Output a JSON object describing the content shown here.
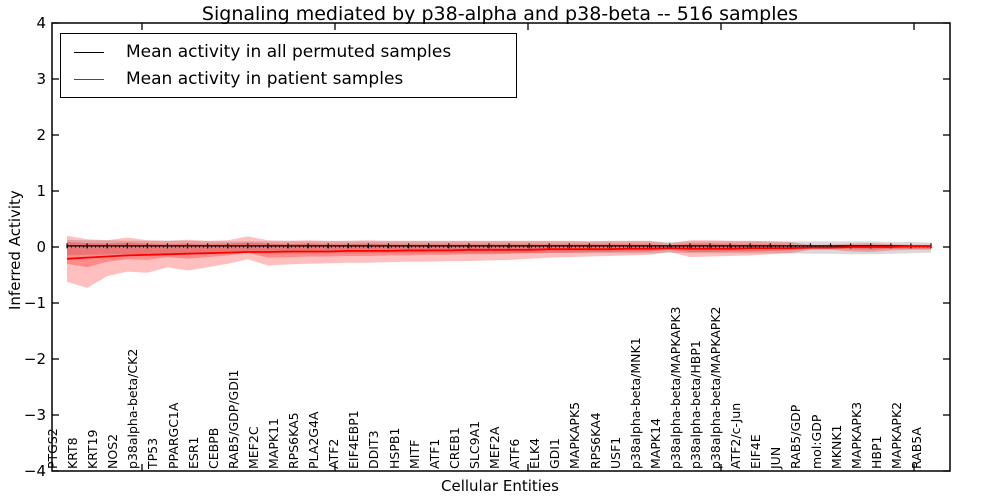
{
  "chart_data": {
    "type": "line",
    "title": "Signaling mediated by p38-alpha and p38-beta -- 516 samples",
    "xlabel": "Cellular Entities",
    "ylabel": "Inferred Activity",
    "ylim": [
      -4,
      4
    ],
    "yticks": [
      4,
      3,
      2,
      1,
      0,
      -1,
      -2,
      -3,
      -4
    ],
    "ytick_labels": [
      "4",
      "3",
      "2",
      "1",
      "0",
      "−1",
      "−2",
      "−3",
      "−4"
    ],
    "grid": false,
    "zero_line": true,
    "categories": [
      "PTGS2",
      "KRT8",
      "KRT19",
      "NOS2",
      "p38alpha-beta/CK2",
      "TP53",
      "PPARGC1A",
      "ESR1",
      "CEBPB",
      "RAB5/GDP/GDI1",
      "MEF2C",
      "MAPK11",
      "RPS6KA5",
      "PLA2G4A",
      "ATF2",
      "EIF4EBP1",
      "DDIT3",
      "HSPB1",
      "MITF",
      "ATF1",
      "CREB1",
      "SLC9A1",
      "MEF2A",
      "ATF6",
      "ELK4",
      "GDI1",
      "MAPKAPK5",
      "RPS6KA4",
      "USF1",
      "p38alpha-beta/MNK1",
      "MAPK14",
      "p38alpha-beta/MAPKAPK3",
      "p38alpha-beta/HBP1",
      "p38alpha-beta/MAPKAPK2",
      "ATF2/c-Jun",
      "EIF4E",
      "JUN",
      "RAB5/GDP",
      "mol:GDP",
      "MKNK1",
      "MAPKAPK3",
      "HBP1",
      "MAPKAPK2",
      "RAB5A"
    ],
    "series": [
      {
        "name": "Mean activity in all permuted samples",
        "color": "#000000",
        "marker": "tick",
        "values": [
          0.02,
          0.02,
          0.02,
          0.02,
          0.02,
          0.02,
          0.02,
          0.02,
          0.02,
          0.02,
          0.02,
          0.02,
          0.02,
          0.02,
          0.02,
          0.02,
          0.02,
          0.02,
          0.02,
          0.02,
          0.02,
          0.02,
          0.02,
          0.02,
          0.02,
          0.02,
          0.02,
          0.02,
          0.02,
          0.02,
          0.02,
          0.02,
          0.02,
          0.02,
          0.02,
          0.02,
          0.02,
          0.02,
          0.02,
          0.02,
          0.02,
          0.02,
          0.02,
          0.02
        ]
      },
      {
        "name": "Mean activity in patient samples",
        "color": "#ff0000",
        "marker": "none",
        "values": [
          -0.21,
          -0.19,
          -0.17,
          -0.15,
          -0.14,
          -0.13,
          -0.12,
          -0.11,
          -0.1,
          -0.09,
          -0.09,
          -0.08,
          -0.08,
          -0.08,
          -0.07,
          -0.07,
          -0.07,
          -0.06,
          -0.06,
          -0.06,
          -0.05,
          -0.05,
          -0.05,
          -0.05,
          -0.04,
          -0.04,
          -0.04,
          -0.04,
          -0.03,
          -0.03,
          -0.02,
          -0.03,
          -0.03,
          -0.03,
          -0.02,
          -0.02,
          -0.02,
          -0.01,
          -0.01,
          0.0,
          0.0,
          0.0,
          0.01,
          0.01
        ]
      }
    ],
    "bands": [
      {
        "name": "permuted-samples-band",
        "color": "rgba(0,0,0,0.15)",
        "upper": [
          0.13,
          0.12,
          0.12,
          0.11,
          0.11,
          0.11,
          0.11,
          0.1,
          0.1,
          0.1,
          0.1,
          0.1,
          0.1,
          0.1,
          0.1,
          0.1,
          0.1,
          0.1,
          0.1,
          0.1,
          0.1,
          0.1,
          0.1,
          0.1,
          0.1,
          0.1,
          0.1,
          0.1,
          0.1,
          0.1,
          0.09,
          0.1,
          0.1,
          0.1,
          0.1,
          0.1,
          0.1,
          0.1,
          0.1,
          0.1,
          0.1,
          0.09,
          0.09,
          0.08
        ],
        "lower": [
          -0.15,
          -0.14,
          -0.13,
          -0.13,
          -0.12,
          -0.12,
          -0.12,
          -0.11,
          -0.11,
          -0.11,
          -0.11,
          -0.11,
          -0.11,
          -0.11,
          -0.11,
          -0.11,
          -0.11,
          -0.11,
          -0.11,
          -0.11,
          -0.11,
          -0.11,
          -0.11,
          -0.11,
          -0.11,
          -0.11,
          -0.11,
          -0.11,
          -0.11,
          -0.11,
          -0.1,
          -0.11,
          -0.11,
          -0.11,
          -0.11,
          -0.11,
          -0.11,
          -0.12,
          -0.12,
          -0.13,
          -0.13,
          -0.12,
          -0.11,
          -0.1
        ]
      },
      {
        "name": "patient-samples-band-outer",
        "color": "rgba(255,0,0,0.25)",
        "upper": [
          0.2,
          0.14,
          0.12,
          0.17,
          0.12,
          0.11,
          0.13,
          0.11,
          0.12,
          0.19,
          0.12,
          0.11,
          0.12,
          0.11,
          0.11,
          0.12,
          0.11,
          0.11,
          0.11,
          0.11,
          0.11,
          0.11,
          0.11,
          0.11,
          0.11,
          0.11,
          0.1,
          0.11,
          0.11,
          0.11,
          0.06,
          0.12,
          0.12,
          0.11,
          0.11,
          0.1,
          0.09,
          0.04,
          0.04,
          0.06,
          0.07,
          0.05,
          0.04,
          0.04
        ],
        "lower": [
          -0.62,
          -0.73,
          -0.52,
          -0.44,
          -0.46,
          -0.36,
          -0.42,
          -0.36,
          -0.3,
          -0.22,
          -0.33,
          -0.31,
          -0.3,
          -0.29,
          -0.28,
          -0.28,
          -0.27,
          -0.26,
          -0.26,
          -0.25,
          -0.25,
          -0.24,
          -0.23,
          -0.21,
          -0.19,
          -0.18,
          -0.17,
          -0.16,
          -0.15,
          -0.14,
          -0.09,
          -0.18,
          -0.17,
          -0.16,
          -0.15,
          -0.13,
          -0.11,
          -0.05,
          -0.05,
          -0.08,
          -0.09,
          -0.06,
          -0.05,
          -0.05
        ]
      },
      {
        "name": "patient-samples-band-inner",
        "color": "rgba(255,0,0,0.28)",
        "upper": [
          0.09,
          0.07,
          0.06,
          0.08,
          0.06,
          0.05,
          0.06,
          0.05,
          0.06,
          0.08,
          0.06,
          0.05,
          0.06,
          0.05,
          0.05,
          0.06,
          0.05,
          0.05,
          0.05,
          0.05,
          0.05,
          0.05,
          0.05,
          0.05,
          0.05,
          0.05,
          0.05,
          0.05,
          0.05,
          0.05,
          0.03,
          0.06,
          0.06,
          0.05,
          0.05,
          0.05,
          0.04,
          0.02,
          0.02,
          0.03,
          0.03,
          0.02,
          0.02,
          0.02
        ],
        "lower": [
          -0.3,
          -0.36,
          -0.26,
          -0.22,
          -0.23,
          -0.18,
          -0.21,
          -0.18,
          -0.15,
          -0.1,
          -0.19,
          -0.18,
          -0.17,
          -0.17,
          -0.16,
          -0.16,
          -0.15,
          -0.15,
          -0.14,
          -0.14,
          -0.13,
          -0.13,
          -0.12,
          -0.11,
          -0.1,
          -0.1,
          -0.09,
          -0.09,
          -0.08,
          -0.08,
          -0.05,
          -0.09,
          -0.09,
          -0.08,
          -0.08,
          -0.07,
          -0.06,
          -0.03,
          -0.03,
          -0.04,
          -0.05,
          -0.03,
          -0.03,
          -0.03
        ]
      }
    ],
    "legend": {
      "position": "upper-left",
      "entries": [
        {
          "label": "Mean activity in all permuted samples",
          "color": "#000000"
        },
        {
          "label": "Mean activity in patient samples",
          "color": "#ff0000"
        }
      ]
    }
  }
}
